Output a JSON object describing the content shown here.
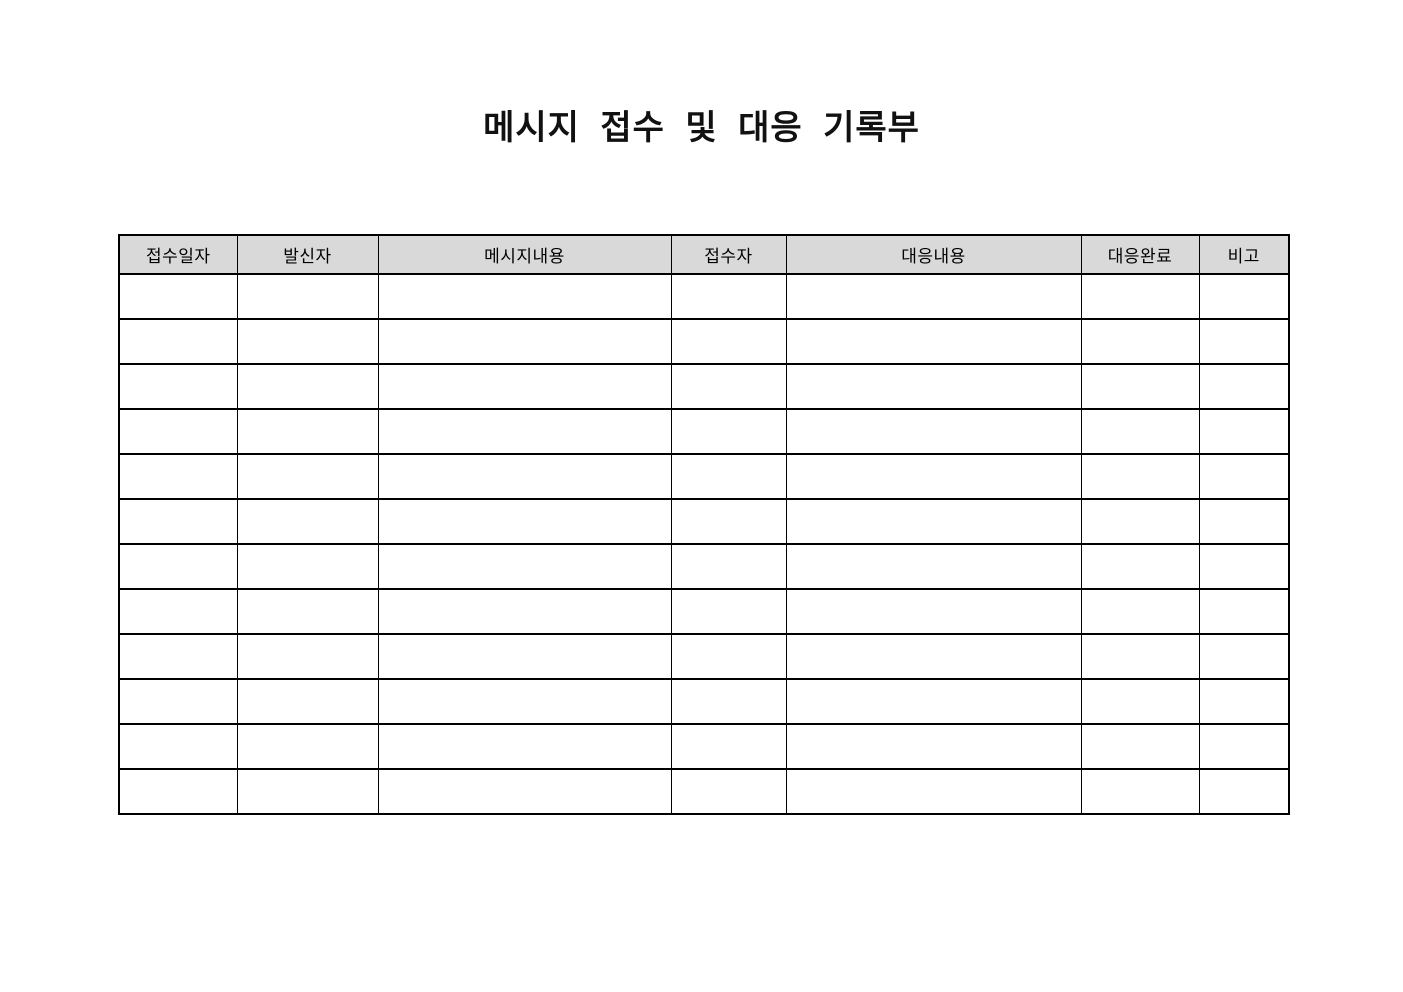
{
  "page": {
    "title": "메시지 접수 및 대응 기록부"
  },
  "table": {
    "columns": [
      {
        "label": "접수일자"
      },
      {
        "label": "발신자"
      },
      {
        "label": "메시지내용"
      },
      {
        "label": "접수자"
      },
      {
        "label": "대응내용"
      },
      {
        "label": "대응완료"
      },
      {
        "label": "비고"
      }
    ],
    "rows": [
      [
        "",
        "",
        "",
        "",
        "",
        "",
        ""
      ],
      [
        "",
        "",
        "",
        "",
        "",
        "",
        ""
      ],
      [
        "",
        "",
        "",
        "",
        "",
        "",
        ""
      ],
      [
        "",
        "",
        "",
        "",
        "",
        "",
        ""
      ],
      [
        "",
        "",
        "",
        "",
        "",
        "",
        ""
      ],
      [
        "",
        "",
        "",
        "",
        "",
        "",
        ""
      ],
      [
        "",
        "",
        "",
        "",
        "",
        "",
        ""
      ],
      [
        "",
        "",
        "",
        "",
        "",
        "",
        ""
      ],
      [
        "",
        "",
        "",
        "",
        "",
        "",
        ""
      ],
      [
        "",
        "",
        "",
        "",
        "",
        "",
        ""
      ],
      [
        "",
        "",
        "",
        "",
        "",
        "",
        ""
      ],
      [
        "",
        "",
        "",
        "",
        "",
        "",
        ""
      ]
    ],
    "header_bg": "#d9d9d9",
    "border_color": "#000000"
  }
}
